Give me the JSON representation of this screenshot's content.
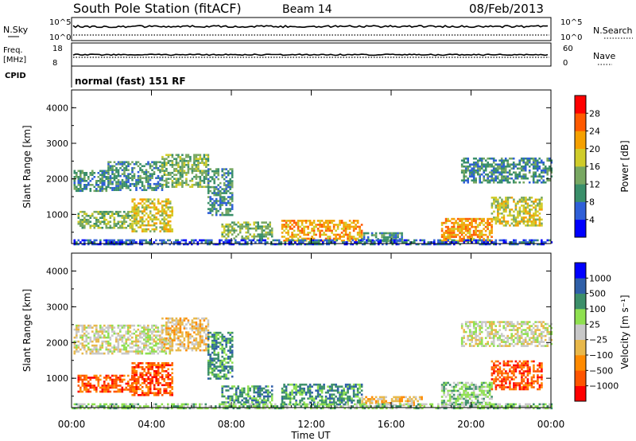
{
  "header": {
    "title": "South Pole Station (fitACF)",
    "beam": "Beam 14",
    "date": "08/Feb/2013"
  },
  "side_labels": {
    "nsky": "N.Sky",
    "freq_line1": "Freq.",
    "freq_line2": "[MHz]",
    "cpid": "CPID",
    "nsearch": "N.Search",
    "nave": "Nave",
    "nsky_ticks": [
      "10^5",
      "10^0"
    ],
    "freq_ticks": [
      "18",
      "8"
    ],
    "nave_ticks": [
      "60",
      "0"
    ],
    "cpid_text": "normal (fast) 151 RF"
  },
  "colors": {
    "power": [
      "#0000ff",
      "#2f5fd8",
      "#3a8f6a",
      "#78a862",
      "#d0cc2a",
      "#f5a000",
      "#ff5a00",
      "#ff0000"
    ],
    "velocity": [
      "#ff0000",
      "#ff5500",
      "#ff8a00",
      "#e8b84a",
      "#c8c8c8",
      "#8fe050",
      "#3c8f6a",
      "#2f5fa8",
      "#0000ff"
    ]
  },
  "chart_data": [
    {
      "type": "heatmap",
      "title": "",
      "xlabel": "Time UT",
      "ylabel": "Slant Range [km]",
      "x_ticks": [
        "00:00",
        "04:00",
        "08:00",
        "12:00",
        "16:00",
        "20:00",
        "00:00"
      ],
      "xlim_hours": [
        0,
        24
      ],
      "ylim": [
        180,
        4500
      ],
      "y_ticks": [
        1000,
        2000,
        3000,
        4000
      ],
      "colorbar": {
        "label": "Power [dB]",
        "ticks": [
          "4",
          "8",
          "12",
          "16",
          "20",
          "24",
          "28"
        ],
        "range": [
          0,
          30
        ]
      },
      "regions": [
        {
          "t": [
            0.1,
            1.8
          ],
          "r": [
            1650,
            2250
          ],
          "level": 2
        },
        {
          "t": [
            1.8,
            4.5
          ],
          "r": [
            1700,
            2500
          ],
          "level": 2
        },
        {
          "t": [
            4.5,
            6.8
          ],
          "r": [
            1800,
            2700
          ],
          "level": 3
        },
        {
          "t": [
            0.3,
            3.0
          ],
          "r": [
            650,
            1100
          ],
          "level": 3
        },
        {
          "t": [
            3.0,
            5.0
          ],
          "r": [
            550,
            1450
          ],
          "level": 4
        },
        {
          "t": [
            6.8,
            8.0
          ],
          "r": [
            1000,
            2300
          ],
          "level": 2
        },
        {
          "t": [
            7.5,
            10.0
          ],
          "r": [
            350,
            800
          ],
          "level": 3
        },
        {
          "t": [
            10.5,
            14.5
          ],
          "r": [
            250,
            850
          ],
          "level": 5
        },
        {
          "t": [
            14.5,
            16.5
          ],
          "r": [
            250,
            500
          ],
          "level": 2
        },
        {
          "t": [
            18.5,
            21.0
          ],
          "r": [
            250,
            900
          ],
          "level": 5
        },
        {
          "t": [
            21.0,
            23.5
          ],
          "r": [
            700,
            1500
          ],
          "level": 4
        },
        {
          "t": [
            19.5,
            24.0
          ],
          "r": [
            1900,
            2600
          ],
          "level": 2
        },
        {
          "t": [
            0.0,
            24.0
          ],
          "r": [
            180,
            300
          ],
          "level": 1
        }
      ]
    },
    {
      "type": "heatmap",
      "title": "",
      "xlabel": "Time UT",
      "ylabel": "Slant Range [km]",
      "x_ticks": [
        "00:00",
        "04:00",
        "08:00",
        "12:00",
        "16:00",
        "20:00",
        "00:00"
      ],
      "xlim_hours": [
        0,
        24
      ],
      "ylim": [
        180,
        4500
      ],
      "y_ticks": [
        1000,
        2000,
        3000,
        4000
      ],
      "colorbar": {
        "label": "Velocity [m s⁻¹]",
        "ticks": [
          "1000",
          "500",
          "100",
          "25",
          "−25",
          "−100",
          "−500",
          "−1000"
        ],
        "range": [
          -1000,
          1000
        ]
      },
      "regions": [
        {
          "t": [
            0.1,
            5.0
          ],
          "r": [
            1700,
            2500
          ],
          "level": 4
        },
        {
          "t": [
            4.5,
            6.8
          ],
          "r": [
            1800,
            2700
          ],
          "level": 3
        },
        {
          "t": [
            0.3,
            3.0
          ],
          "r": [
            650,
            1100
          ],
          "level": 1
        },
        {
          "t": [
            3.0,
            5.0
          ],
          "r": [
            550,
            1450
          ],
          "level": 1
        },
        {
          "t": [
            6.8,
            8.0
          ],
          "r": [
            1000,
            2300
          ],
          "level": 6
        },
        {
          "t": [
            7.5,
            10.0
          ],
          "r": [
            350,
            800
          ],
          "level": 6
        },
        {
          "t": [
            10.5,
            14.5
          ],
          "r": [
            250,
            850
          ],
          "level": 6
        },
        {
          "t": [
            14.5,
            17.5
          ],
          "r": [
            250,
            500
          ],
          "level": 3
        },
        {
          "t": [
            18.5,
            21.0
          ],
          "r": [
            250,
            900
          ],
          "level": 5
        },
        {
          "t": [
            21.0,
            23.5
          ],
          "r": [
            700,
            1500
          ],
          "level": 1
        },
        {
          "t": [
            19.5,
            24.0
          ],
          "r": [
            1900,
            2600
          ],
          "level": 4
        },
        {
          "t": [
            0.0,
            24.0
          ],
          "r": [
            180,
            300
          ],
          "level": 5
        }
      ]
    }
  ]
}
